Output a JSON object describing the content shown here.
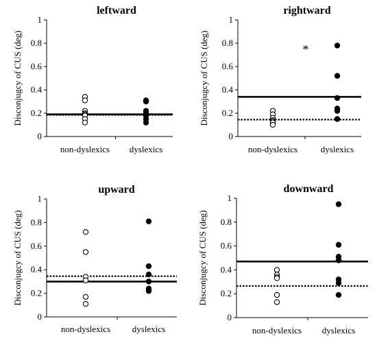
{
  "chart_data": [
    {
      "type": "scatter",
      "title": "leftward",
      "ylabel": "Disconjugcy of CUS (deg)",
      "categories": [
        "non-dyslexics",
        "dyslexics"
      ],
      "ylim": [
        0,
        1
      ],
      "yticks": [
        "0",
        "0.2",
        "0.4",
        "0.6",
        "0.8",
        "1"
      ],
      "series": [
        {
          "category": "non-dyslexics",
          "marker": "open",
          "values": [
            0.34,
            0.31,
            0.22,
            0.2,
            0.19,
            0.18,
            0.15,
            0.12
          ]
        },
        {
          "category": "dyslexics",
          "marker": "filled",
          "values": [
            0.31,
            0.3,
            0.22,
            0.2,
            0.19,
            0.18,
            0.15,
            0.12
          ]
        }
      ],
      "mean_lines": {
        "dyslexics_solid": 0.19,
        "non_dyslexics_dotted": 0.185
      },
      "annotation": ""
    },
    {
      "type": "scatter",
      "title": "rightward",
      "ylabel": "Disconjugcy of CUS (deg)",
      "categories": [
        "non-dyslexics",
        "dyslexics"
      ],
      "ylim": [
        0,
        1
      ],
      "yticks": [
        "0",
        "0.2",
        "0.4",
        "0.6",
        "0.8",
        "1"
      ],
      "series": [
        {
          "category": "non-dyslexics",
          "marker": "open",
          "values": [
            0.22,
            0.19,
            0.16,
            0.14,
            0.13,
            0.12,
            0.1
          ]
        },
        {
          "category": "dyslexics",
          "marker": "filled",
          "values": [
            0.78,
            0.52,
            0.33,
            0.24,
            0.22,
            0.15
          ]
        }
      ],
      "mean_lines": {
        "dyslexics_solid": 0.34,
        "non_dyslexics_dotted": 0.145
      },
      "annotation": "*"
    },
    {
      "type": "scatter",
      "title": "upward",
      "ylabel": "Disconjugcy of CUS (deg)",
      "categories": [
        "non-dyslexics",
        "dyslexics"
      ],
      "ylim": [
        0,
        1
      ],
      "yticks": [
        "0",
        "0.2",
        "0.4",
        "0.6",
        "0.8",
        "1"
      ],
      "series": [
        {
          "category": "non-dyslexics",
          "marker": "open",
          "values": [
            0.72,
            0.55,
            0.34,
            0.31,
            0.17,
            0.11
          ]
        },
        {
          "category": "dyslexics",
          "marker": "filled",
          "values": [
            0.81,
            0.43,
            0.36,
            0.3,
            0.24,
            0.22
          ]
        }
      ],
      "mean_lines": {
        "dyslexics_solid": 0.3,
        "non_dyslexics_dotted": 0.345
      },
      "annotation": ""
    },
    {
      "type": "scatter",
      "title": "downward",
      "ylabel": "Disconjugcy of CUS (deg)",
      "categories": [
        "non-dyslexics",
        "dyslexics"
      ],
      "ylim": [
        0,
        1
      ],
      "yticks": [
        "0",
        "0.2",
        "0.4",
        "0.6",
        "0.8",
        "1"
      ],
      "series": [
        {
          "category": "non-dyslexics",
          "marker": "open",
          "values": [
            0.4,
            0.36,
            0.34,
            0.33,
            0.19,
            0.13
          ]
        },
        {
          "category": "dyslexics",
          "marker": "filled",
          "values": [
            0.95,
            0.61,
            0.51,
            0.48,
            0.32,
            0.29,
            0.19
          ]
        }
      ],
      "mean_lines": {
        "dyslexics_solid": 0.47,
        "non_dyslexics_dotted": 0.265
      },
      "annotation": ""
    }
  ]
}
